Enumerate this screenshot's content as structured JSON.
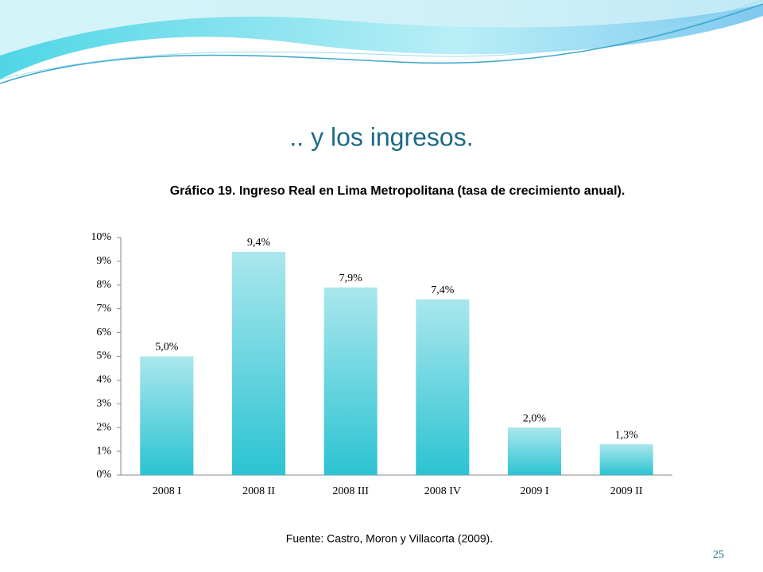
{
  "slide": {
    "title": ".. y los ingresos.",
    "source": "Fuente: Castro, Moron y Villacorta (2009).",
    "page_number": "25"
  },
  "chart_data": {
    "type": "bar",
    "title": "Gráfico 19. Ingreso Real en Lima Metropolitana (tasa de crecimiento anual).",
    "categories": [
      "2008 I",
      "2008 II",
      "2008 III",
      "2008 IV",
      "2009 I",
      "2009 II"
    ],
    "values": [
      5.0,
      9.4,
      7.9,
      7.4,
      2.0,
      1.3
    ],
    "value_labels": [
      "5,0%",
      "9,4%",
      "7,9%",
      "7,4%",
      "2,0%",
      "1,3%"
    ],
    "color": "#2bc3d2",
    "ylim": [
      0,
      10
    ],
    "yticks": [
      {
        "value": 0,
        "label": "0%"
      },
      {
        "value": 1,
        "label": "1%"
      },
      {
        "value": 2,
        "label": "2%"
      },
      {
        "value": 3,
        "label": "3%"
      },
      {
        "value": 4,
        "label": "4%"
      },
      {
        "value": 5,
        "label": "5%"
      },
      {
        "value": 6,
        "label": "6%"
      },
      {
        "value": 7,
        "label": "7%"
      },
      {
        "value": 8,
        "label": "8%"
      },
      {
        "value": 9,
        "label": "9%"
      },
      {
        "value": 10,
        "label": "10%"
      }
    ],
    "grid": false
  }
}
